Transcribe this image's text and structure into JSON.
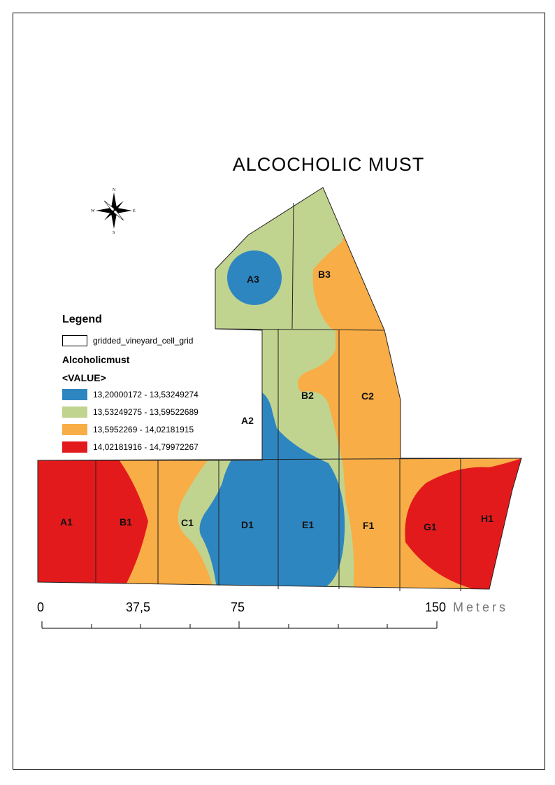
{
  "map": {
    "title": "ALCOCHOLIC  MUST",
    "colors": {
      "class1": "#2e86c1",
      "class2": "#c1d48f",
      "class3": "#f8ad46",
      "class4": "#e31a1c"
    },
    "cells": [
      {
        "id": "A1",
        "label": "A1"
      },
      {
        "id": "B1",
        "label": "B1"
      },
      {
        "id": "C1",
        "label": "C1"
      },
      {
        "id": "D1",
        "label": "D1"
      },
      {
        "id": "E1",
        "label": "E1"
      },
      {
        "id": "F1",
        "label": "F1"
      },
      {
        "id": "G1",
        "label": "G1"
      },
      {
        "id": "H1",
        "label": "H1"
      },
      {
        "id": "A2",
        "label": "A2"
      },
      {
        "id": "B2",
        "label": "B2"
      },
      {
        "id": "C2",
        "label": "C2"
      },
      {
        "id": "A3",
        "label": "A3"
      },
      {
        "id": "B3",
        "label": "B3"
      }
    ],
    "compass": {
      "n": "N",
      "s": "S",
      "e": "E",
      "w": "W"
    },
    "legend": {
      "title": "Legend",
      "grid_label": "gridded_vineyard_cell_grid",
      "layer_name": "Alcoholicmust",
      "field_name": "<VALUE>",
      "classes": [
        {
          "label": "13,20000172 - 13,53249274",
          "color": "#2e86c1"
        },
        {
          "label": "13,53249275 - 13,59522689",
          "color": "#c1d48f"
        },
        {
          "label": "13,5952269 - 14,02181915",
          "color": "#f8ad46"
        },
        {
          "label": "14,02181916 - 14,79972267",
          "color": "#e31a1c"
        }
      ]
    },
    "scale_bar": {
      "labels": [
        "0",
        "37,5",
        "75",
        "150"
      ],
      "units": "Meters"
    }
  }
}
